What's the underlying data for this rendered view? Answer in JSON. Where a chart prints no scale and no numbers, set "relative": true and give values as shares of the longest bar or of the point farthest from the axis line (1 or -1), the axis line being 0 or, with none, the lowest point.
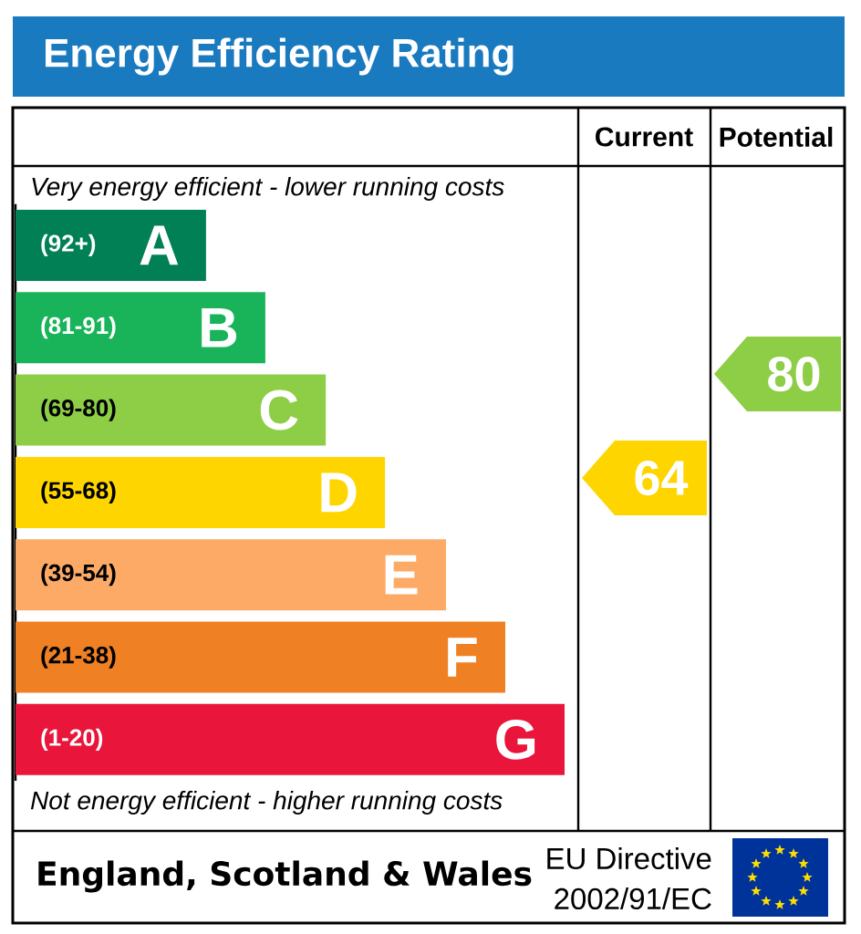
{
  "chart_data": {
    "type": "bar",
    "orientation": "horizontal",
    "relative": true,
    "title": "Energy Efficiency Rating",
    "categories": [
      "A",
      "B",
      "C",
      "D",
      "E",
      "F",
      "G"
    ],
    "values": [
      0.347,
      0.455,
      0.565,
      0.673,
      0.784,
      0.892,
      1
    ],
    "colors": [
      "#008054",
      "#19b459",
      "#8dce46",
      "#ffd500",
      "#fcaa65",
      "#ef8023",
      "#e9153b"
    ],
    "annotations": [
      "Current",
      "Potential",
      "Very energy efficient - lower running costs",
      "Not energy efficient - higher running costs",
      "England, Scotland & Wales",
      "EU Directive",
      "2002/91/EC",
      "(92+)",
      "(81-91)",
      "(69-80)",
      "(55-68)",
      "(39-54)",
      "(21-38)",
      "(1-20)",
      "64",
      "80"
    ]
  }
}
